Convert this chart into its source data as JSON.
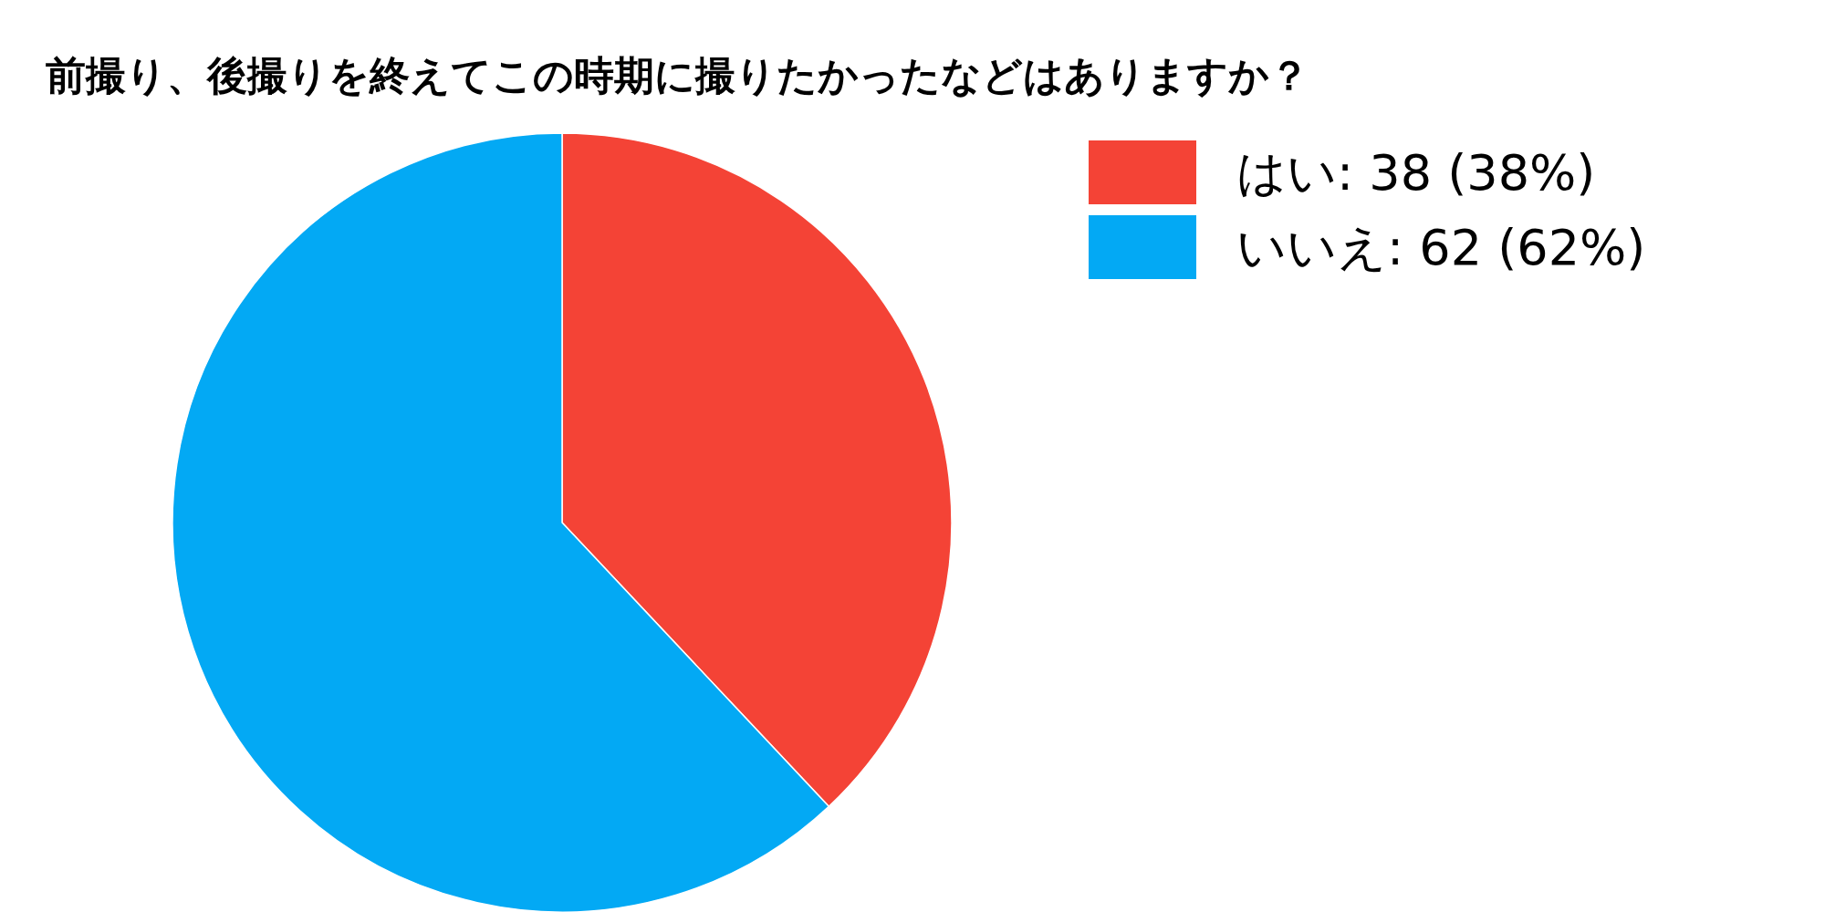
{
  "chart_data": {
    "type": "pie",
    "title": "前撮り、後撮りを終えてこの時期に撮りたかったなどはありますか？",
    "categories": [
      "はい",
      "いいえ"
    ],
    "values": [
      38,
      62
    ],
    "value_labels": [
      "38 (38%)",
      "62 (62%)"
    ],
    "colors": [
      "#f44336",
      "#03a9f4"
    ],
    "legend": "top right"
  }
}
